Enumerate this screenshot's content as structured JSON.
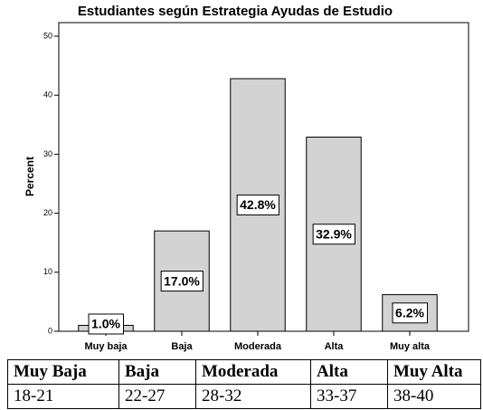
{
  "chart_data": {
    "type": "bar",
    "title": "Estudiantes según Estrategia Ayudas de Estudio",
    "y_label": "Percent",
    "categories": [
      "Muy baja",
      "Baja",
      "Moderada",
      "Alta",
      "Muy alta"
    ],
    "values": [
      1.0,
      17.0,
      42.8,
      32.9,
      6.2
    ],
    "value_labels": [
      "1.0%",
      "17.0%",
      "42.8%",
      "32.9%",
      "6.2%"
    ],
    "color": "#d3d3d3",
    "ylim": [
      0,
      52.3
    ],
    "yticks": [
      0,
      10,
      20,
      30,
      40,
      50
    ],
    "grid": false
  },
  "table": {
    "header": [
      "Muy Baja",
      "Baja",
      "Moderada",
      "Alta",
      "Muy Alta"
    ],
    "rows": [
      [
        "18-21",
        "22-27",
        "28-32",
        "33-37",
        "38-40"
      ]
    ]
  }
}
